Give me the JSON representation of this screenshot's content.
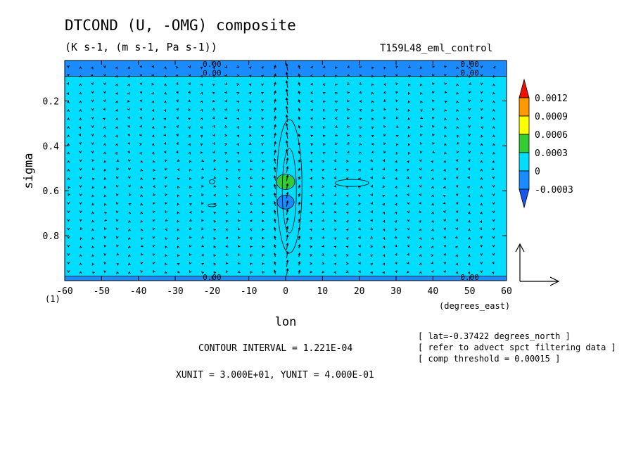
{
  "chart_data": {
    "type": "heatmap",
    "title": "DTCOND (U, -OMG) composite",
    "subtitle": "(K s-1, (m s-1, Pa s-1))",
    "run_name": "T159L48_eml_control",
    "xlabel": "lon",
    "ylabel": "sigma",
    "x_units": "(degrees_east)",
    "y_bottom_label": "(1)",
    "xlim": [
      -60,
      60
    ],
    "ylim": [
      1.0,
      0.02
    ],
    "x_ticks": [
      "-60",
      "-50",
      "-40",
      "-30",
      "-20",
      "-10",
      "0",
      "10",
      "20",
      "30",
      "40",
      "50",
      "60"
    ],
    "y_ticks": [
      "0.2",
      "0.4",
      "0.6",
      "0.8"
    ],
    "colorbar": {
      "levels": [
        "0.0012",
        "0.0009",
        "0.0006",
        "0.0003",
        "0",
        "-0.0003"
      ],
      "colors": [
        "#ee1100",
        "#ff9900",
        "#ffff00",
        "#33cc33",
        "#00ddff",
        "#1a8cff",
        "#1a55ee"
      ]
    },
    "contour_labels": [
      "0.00",
      "0.00",
      "0.00",
      "0.00",
      "0.00",
      "0.00"
    ],
    "features": [
      {
        "kind": "positive",
        "lon": 0,
        "sigma": 0.56,
        "value": 0.0005
      },
      {
        "kind": "negative",
        "lon": 0,
        "sigma": 0.65,
        "value": -0.0003
      },
      {
        "kind": "negative-band",
        "sigma": [
          0.02,
          0.09
        ],
        "value": -0.0003
      },
      {
        "kind": "negative-band",
        "sigma": [
          0.98,
          1.0
        ],
        "value": -0.0003
      }
    ],
    "info_lines": [
      "[ lat=-0.37422 degrees_north ]",
      "[ refer to advect spct filtering data ]",
      "[ comp threshold = 0.00015 ]"
    ],
    "contour_interval": "CONTOUR INTERVAL = 1.221E-04",
    "vector_units": "XUNIT = 3.000E+01, YUNIT = 4.000E-01"
  }
}
